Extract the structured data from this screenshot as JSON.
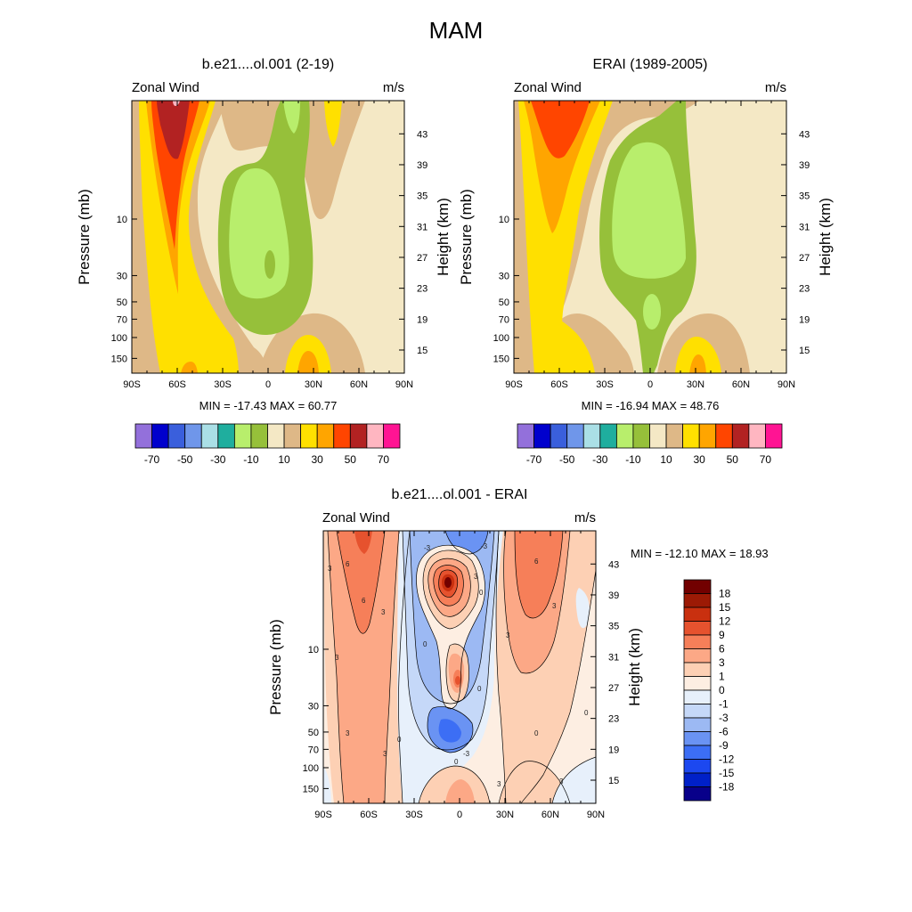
{
  "page_title": "MAM",
  "colors": {
    "abs_palette": [
      "#9370db",
      "#0000cd",
      "#3a5fdc",
      "#6f96ea",
      "#aadfe6",
      "#1fae9e",
      "#b8ee6c",
      "#96c03a",
      "#f4e8c5",
      "#deb887",
      "#ffe000",
      "#ffa500",
      "#ff4500",
      "#b22222",
      "#ffb6c1",
      "#ff1493"
    ],
    "diff_palette": [
      "#08008a",
      "#0020c8",
      "#1c48f0",
      "#3c6ef5",
      "#6a93f3",
      "#9cb9f3",
      "#c5d8f8",
      "#e7f0fb",
      "#fdeee2",
      "#fdd0b4",
      "#fca886",
      "#f67f59",
      "#e6522e",
      "#c9300f",
      "#9c1a05",
      "#720000"
    ]
  },
  "panels": [
    {
      "title": "b.e21....ol.001 (2-19)",
      "left_label": "Zonal Wind",
      "right_label": "m/s",
      "y_axis_label": "Pressure (mb)",
      "y2_axis_label": "Height (km)",
      "minmax_text": "MIN = -17.43  MAX =  60.77"
    },
    {
      "title": "ERAI (1989-2005)",
      "left_label": "Zonal Wind",
      "right_label": "m/s",
      "y_axis_label": "Pressure (mb)",
      "y2_axis_label": "Height (km)",
      "minmax_text": "MIN = -16.94  MAX =  48.76"
    },
    {
      "title": "b.e21....ol.001 - ERAI",
      "left_label": "Zonal Wind",
      "right_label": "m/s",
      "y_axis_label": "Pressure (mb)",
      "y2_axis_label": "Height (km)",
      "minmax_text": "MIN = -12.10  MAX =  18.93"
    }
  ],
  "chart_data": [
    {
      "type": "heatmap",
      "title": "b.e21....ol.001 (2-19)",
      "variable": "Zonal Wind",
      "units": "m/s",
      "x_ticks": [
        "90S",
        "60S",
        "30S",
        "0",
        "30N",
        "60N",
        "90N"
      ],
      "y_ticks_pressure": [
        "10",
        "30",
        "50",
        "70",
        "100",
        "150"
      ],
      "y_ticks_height": [
        "43",
        "39",
        "35",
        "31",
        "27",
        "23",
        "19",
        "15"
      ],
      "colorbar_levels": [
        -70,
        -60,
        -50,
        -40,
        -30,
        -20,
        -10,
        0,
        10,
        20,
        30,
        40,
        50,
        60,
        70
      ],
      "colorbar_labels": [
        "-70",
        "-50",
        "-30",
        "-10",
        "10",
        "30",
        "50",
        "70"
      ],
      "min": -17.43,
      "max": 60.77
    },
    {
      "type": "heatmap",
      "title": "ERAI (1989-2005)",
      "variable": "Zonal Wind",
      "units": "m/s",
      "x_ticks": [
        "90S",
        "60S",
        "30S",
        "0",
        "30N",
        "60N",
        "90N"
      ],
      "y_ticks_pressure": [
        "10",
        "30",
        "50",
        "70",
        "100",
        "150"
      ],
      "y_ticks_height": [
        "43",
        "39",
        "35",
        "31",
        "27",
        "23",
        "19",
        "15"
      ],
      "colorbar_levels": [
        -70,
        -60,
        -50,
        -40,
        -30,
        -20,
        -10,
        0,
        10,
        20,
        30,
        40,
        50,
        60,
        70
      ],
      "colorbar_labels": [
        "-70",
        "-50",
        "-30",
        "-10",
        "10",
        "30",
        "50",
        "70"
      ],
      "min": -16.94,
      "max": 48.76
    },
    {
      "type": "heatmap",
      "title": "b.e21....ol.001 - ERAI",
      "variable": "Zonal Wind",
      "units": "m/s",
      "x_ticks": [
        "90S",
        "60S",
        "30S",
        "0",
        "30N",
        "60N",
        "90N"
      ],
      "y_ticks_pressure": [
        "10",
        "30",
        "50",
        "70",
        "100",
        "150"
      ],
      "y_ticks_height": [
        "43",
        "39",
        "35",
        "31",
        "27",
        "23",
        "19",
        "15"
      ],
      "colorbar_levels": [
        -18,
        -15,
        -12,
        -9,
        -6,
        -3,
        -1,
        0,
        1,
        3,
        6,
        9,
        12,
        15,
        18
      ],
      "colorbar_labels": [
        "-18",
        "-15",
        "-12",
        "-9",
        "-6",
        "-3",
        "-1",
        "0",
        "1",
        "3",
        "6",
        "9",
        "12",
        "15",
        "18"
      ],
      "contour_labels": [
        "3",
        "3",
        "3",
        "3",
        "3",
        "3",
        "3",
        "3",
        "6",
        "6",
        "6",
        "3",
        "3",
        "0",
        "0",
        "0",
        "0",
        "0",
        "-3",
        "-3",
        "-3",
        "0",
        "0"
      ],
      "min": -12.1,
      "max": 18.93
    }
  ]
}
